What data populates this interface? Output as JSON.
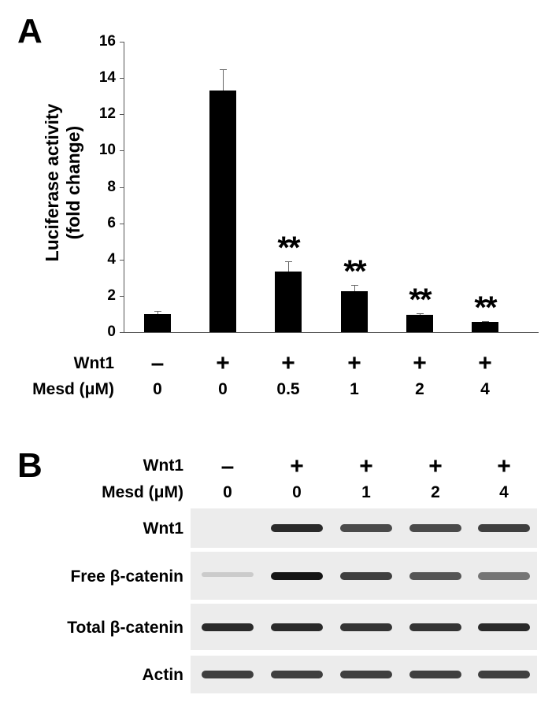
{
  "panel_a": {
    "letter": "A",
    "ylabel_line1": "Luciferase activity",
    "ylabel_line2": "(fold change)",
    "yticks": [
      "0",
      "2",
      "4",
      "6",
      "8",
      "10",
      "12",
      "14",
      "16"
    ],
    "significance": [
      "",
      "",
      "**",
      "**",
      "**",
      "**"
    ],
    "row_wnt1_label": "Wnt1",
    "row_mesd_label": "Mesd (μM)",
    "wnt1": [
      "–",
      "+",
      "+",
      "+",
      "+",
      "+"
    ],
    "mesd": [
      "0",
      "0",
      "0.5",
      "1",
      "2",
      "4"
    ]
  },
  "panel_b": {
    "letter": "B",
    "row_wnt1_label": "Wnt1",
    "row_mesd_label": "Mesd (μM)",
    "wnt1": [
      "–",
      "+",
      "+",
      "+",
      "+"
    ],
    "mesd": [
      "0",
      "0",
      "1",
      "2",
      "4"
    ],
    "blots": [
      {
        "label": "Wnt1",
        "intensity": [
          0.0,
          0.9,
          0.75,
          0.75,
          0.8
        ]
      },
      {
        "label": "Free β-catenin",
        "intensity": [
          0.15,
          1.0,
          0.8,
          0.7,
          0.55
        ]
      },
      {
        "label": "Total β-catenin",
        "intensity": [
          0.9,
          0.9,
          0.85,
          0.85,
          0.9
        ]
      },
      {
        "label": "Actin",
        "intensity": [
          0.8,
          0.8,
          0.8,
          0.8,
          0.8
        ]
      }
    ]
  },
  "colors": {
    "bar": "#000000",
    "axis": "#555555",
    "blot_bg": "#ececec",
    "band": "#1a1a1a"
  },
  "chart_data": {
    "type": "bar",
    "title": "",
    "xlabel": "",
    "ylabel": "Luciferase activity (fold change)",
    "ylim": [
      0,
      16
    ],
    "yticks": [
      0,
      2,
      4,
      6,
      8,
      10,
      12,
      14,
      16
    ],
    "grid": false,
    "legend": null,
    "categories": [
      "Wnt1 -, Mesd 0",
      "Wnt1 +, Mesd 0",
      "Wnt1 +, Mesd 0.5",
      "Wnt1 +, Mesd 1",
      "Wnt1 +, Mesd 2",
      "Wnt1 +, Mesd 4"
    ],
    "values": [
      1.0,
      13.3,
      3.35,
      2.25,
      0.95,
      0.55
    ],
    "error_upper": [
      0.15,
      1.2,
      0.55,
      0.35,
      0.1,
      0.05
    ],
    "annotations": [
      "",
      "",
      "**",
      "**",
      "**",
      "**"
    ]
  }
}
